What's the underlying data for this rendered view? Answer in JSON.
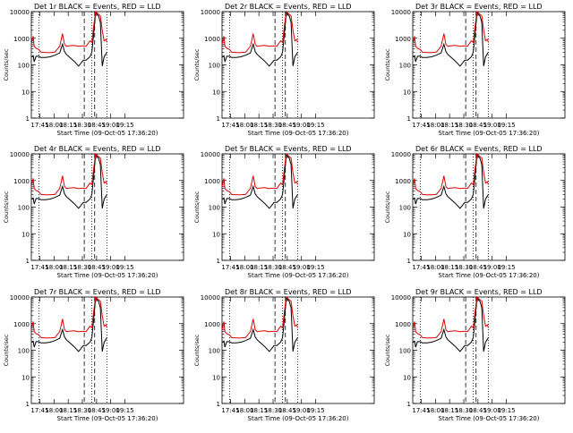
{
  "figure": {
    "ylabel": "Counts/sec",
    "xlabel_prefix": "Start Time",
    "start_time": "09-Oct-05 17:36:20",
    "colors": {
      "events": "#000000",
      "lld": "#e00000"
    }
  },
  "chart_data": [
    {
      "type": "line",
      "title": "Det 1r BLACK = Events, RED = LLD"
    },
    {
      "type": "line",
      "title": "Det 2r BLACK = Events, RED = LLD"
    },
    {
      "type": "line",
      "title": "Det 3r BLACK = Events, RED = LLD"
    },
    {
      "type": "line",
      "title": "Det 4r BLACK = Events, RED = LLD"
    },
    {
      "type": "line",
      "title": "Det 5r BLACK = Events, RED = LLD"
    },
    {
      "type": "line",
      "title": "Det 6r BLACK = Events, RED = LLD"
    },
    {
      "type": "line",
      "title": "Det 7r BLACK = Events, RED = LLD"
    },
    {
      "type": "line",
      "title": "Det 8r BLACK = Events, RED = LLD"
    },
    {
      "type": "line",
      "title": "Det 9r BLACK = Events, RED = LLD"
    }
  ],
  "shared_axes": {
    "x_unit": "minutes after 17:36:20",
    "xlim": [
      0,
      161
    ],
    "x_ticks": [
      {
        "t": 9,
        "label": "17:45"
      },
      {
        "t": 24,
        "label": "18:00"
      },
      {
        "t": 39,
        "label": "18:15"
      },
      {
        "t": 54,
        "label": "18:30"
      },
      {
        "t": 69,
        "label": "18:45"
      },
      {
        "t": 84,
        "label": "19:00"
      },
      {
        "t": 99,
        "label": "19:15"
      }
    ],
    "y_scale": "log",
    "ylim": [
      1,
      10000
    ],
    "y_ticks": [
      {
        "v": 1,
        "label": "1"
      },
      {
        "v": 10,
        "label": "10"
      },
      {
        "v": 100,
        "label": "100"
      },
      {
        "v": 1000,
        "label": "1000"
      },
      {
        "v": 10000,
        "label": "10000"
      }
    ],
    "dotted_lines_t": [
      8,
      64,
      80
    ],
    "dashed_lines_t": [
      56,
      67
    ]
  },
  "series_shape": {
    "lld_t": [
      0,
      2,
      3,
      5,
      8,
      10,
      15,
      20,
      25,
      30,
      33,
      35,
      37,
      40,
      45,
      50,
      55,
      58,
      62,
      64,
      66,
      68,
      71,
      73,
      75,
      77,
      79,
      80
    ],
    "lld_v": [
      600,
      1200,
      500,
      420,
      380,
      300,
      290,
      290,
      300,
      500,
      1500,
      600,
      500,
      520,
      540,
      500,
      520,
      500,
      800,
      700,
      3000,
      12000,
      8000,
      7000,
      2000,
      800,
      900,
      700
    ],
    "ev_t": [
      0,
      2,
      3,
      5,
      8,
      10,
      15,
      20,
      25,
      30,
      33,
      35,
      37,
      40,
      45,
      50,
      55,
      58,
      62,
      64,
      66,
      68,
      71,
      73,
      75,
      77,
      79,
      80
    ],
    "ev_v": [
      200,
      220,
      130,
      210,
      210,
      190,
      190,
      200,
      230,
      280,
      600,
      320,
      250,
      200,
      140,
      90,
      150,
      150,
      200,
      300,
      1500,
      9000,
      7000,
      4000,
      90,
      200,
      260,
      300
    ]
  }
}
